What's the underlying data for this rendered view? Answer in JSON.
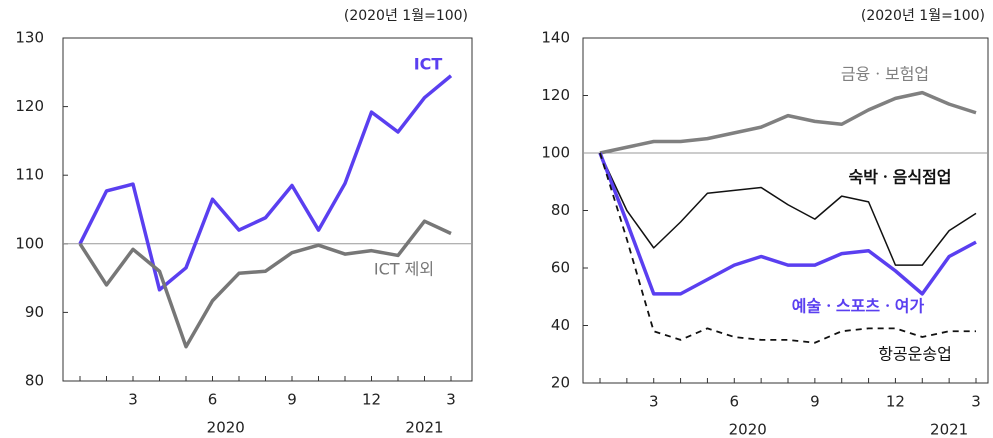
{
  "chart_data": [
    {
      "type": "line",
      "note": "(2020년 1월=100)",
      "categories": [
        null,
        null,
        "3",
        null,
        null,
        "6",
        null,
        null,
        "9",
        null,
        null,
        "12",
        null,
        null,
        "3"
      ],
      "years": [
        "2020",
        "2021"
      ],
      "ylim": [
        80,
        130
      ],
      "yticks": [
        80,
        90,
        100,
        110,
        120,
        130
      ],
      "reference_line": 100,
      "series": [
        {
          "name": "ICT",
          "color": "#5a3ff0",
          "width": 3.5,
          "dash": false,
          "values": [
            100,
            107.7,
            108.7,
            93.3,
            96.5,
            106.5,
            102,
            103.8,
            108.5,
            102,
            108.8,
            119.2,
            116.3,
            121.3,
            124.5
          ]
        },
        {
          "name": "ICT 제외",
          "color": "#777777",
          "width": 3.5,
          "dash": false,
          "values": [
            100,
            94,
            99.2,
            96,
            85,
            91.7,
            95.7,
            96,
            98.7,
            99.8,
            98.5,
            99,
            98.3,
            103.3,
            101.5
          ]
        }
      ]
    },
    {
      "type": "line",
      "note": "(2020년 1월=100)",
      "categories": [
        null,
        null,
        "3",
        null,
        null,
        "6",
        null,
        null,
        "9",
        null,
        null,
        "12",
        null,
        null,
        "3"
      ],
      "years": [
        "2020",
        "2021"
      ],
      "ylim": [
        20,
        140
      ],
      "yticks": [
        20,
        40,
        60,
        80,
        100,
        120,
        140
      ],
      "reference_line": 100,
      "series": [
        {
          "name": "금융ㆍ보험업",
          "color": "#808080",
          "width": 3.5,
          "dash": false,
          "values": [
            100,
            102,
            104,
            104,
            105,
            107,
            109,
            113,
            111,
            110,
            115,
            119,
            121,
            117,
            114
          ]
        },
        {
          "name": "숙박ㆍ음식점업",
          "color": "#111111",
          "width": 1.5,
          "dash": false,
          "values": [
            100,
            80,
            67,
            76,
            86,
            87,
            88,
            82,
            77,
            85,
            83,
            61,
            61,
            73,
            79
          ]
        },
        {
          "name": "예술ㆍ스포츠ㆍ여가",
          "color": "#5a3ff0",
          "width": 3.5,
          "dash": false,
          "values": [
            100,
            76,
            51,
            51,
            56,
            61,
            64,
            61,
            61,
            65,
            66,
            59,
            51,
            64,
            69
          ]
        },
        {
          "name": "항공운송업",
          "color": "#111111",
          "width": 1.8,
          "dash": true,
          "values": [
            100,
            70,
            38,
            35,
            39,
            36,
            35,
            35,
            34,
            38,
            39,
            39,
            36,
            38,
            38
          ]
        }
      ]
    }
  ]
}
